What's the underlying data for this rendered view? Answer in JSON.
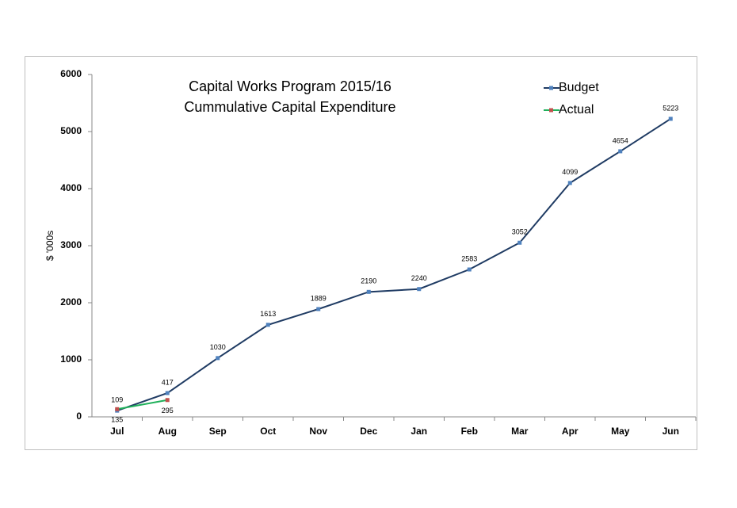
{
  "chart_data": {
    "type": "line",
    "title": "Capital Works Program 2015/16",
    "subtitle": "Cummulative Capital Expenditure",
    "y_label": "$ '000s",
    "categories": [
      "Jul",
      "Aug",
      "Sep",
      "Oct",
      "Nov",
      "Dec",
      "Jan",
      "Feb",
      "Mar",
      "Apr",
      "May",
      "Jun"
    ],
    "series": [
      {
        "name": "Budget",
        "color": "#1f3b63",
        "marker_color": "#4f81bd",
        "values": [
          109,
          417,
          1030,
          1613,
          1889,
          2190,
          2240,
          2583,
          3052,
          4099,
          4654,
          5223
        ]
      },
      {
        "name": "Actual",
        "color": "#1fb05a",
        "marker_color": "#c0504d",
        "values": [
          135,
          295,
          null,
          null,
          null,
          null,
          null,
          null,
          null,
          null,
          null,
          null
        ]
      }
    ],
    "ylim": [
      0,
      6000
    ],
    "yticks": [
      0,
      1000,
      2000,
      3000,
      4000,
      5000,
      6000
    ],
    "grid": false,
    "legend": "top-right"
  }
}
